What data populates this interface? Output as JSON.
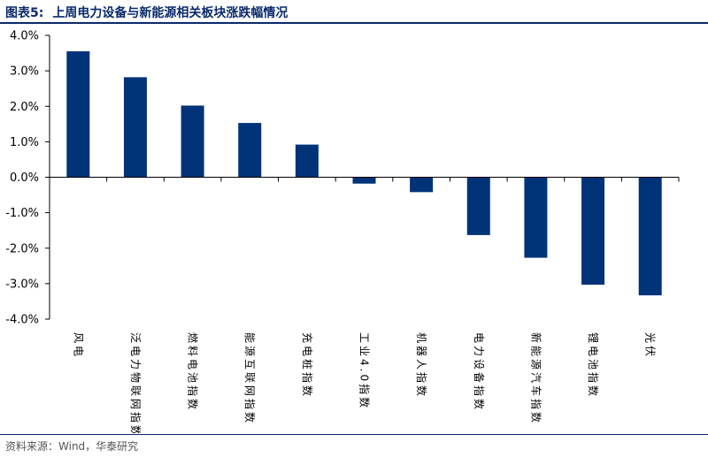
{
  "figure": {
    "label": "图表5:",
    "title": "上周电力设备与新能源相关板块涨跌幅情况",
    "source_label": "资料来源：",
    "source_value": "Wind，华泰研究"
  },
  "colors": {
    "bar": "#003378",
    "axis": "#000000",
    "title": "#0a2a6b"
  },
  "chart_data": {
    "type": "bar",
    "title": "上周电力设备与新能源相关板块涨跌幅情况",
    "xlabel": "",
    "ylabel": "",
    "ylim": [
      -4.0,
      4.0
    ],
    "yticks": [
      4.0,
      3.0,
      2.0,
      1.0,
      0.0,
      -1.0,
      -2.0,
      -3.0,
      -4.0
    ],
    "ytick_labels": [
      "4.0%",
      "3.0%",
      "2.0%",
      "1.0%",
      "0.0%",
      "-1.0%",
      "-2.0%",
      "-3.0%",
      "-4.0%"
    ],
    "grid": false,
    "legend": "none",
    "categories": [
      "风电",
      "泛电力物联网指数",
      "燃料电池指数",
      "能源互联网指数",
      "充电桩指数",
      "工业4.0指数",
      "机器人指数",
      "电力设备指数",
      "新能源汽车指数",
      "锂电池指数",
      "光伏"
    ],
    "values": [
      3.55,
      2.82,
      2.02,
      1.53,
      0.92,
      -0.18,
      -0.42,
      -1.63,
      -2.27,
      -3.03,
      -3.33
    ],
    "unit": "%"
  }
}
